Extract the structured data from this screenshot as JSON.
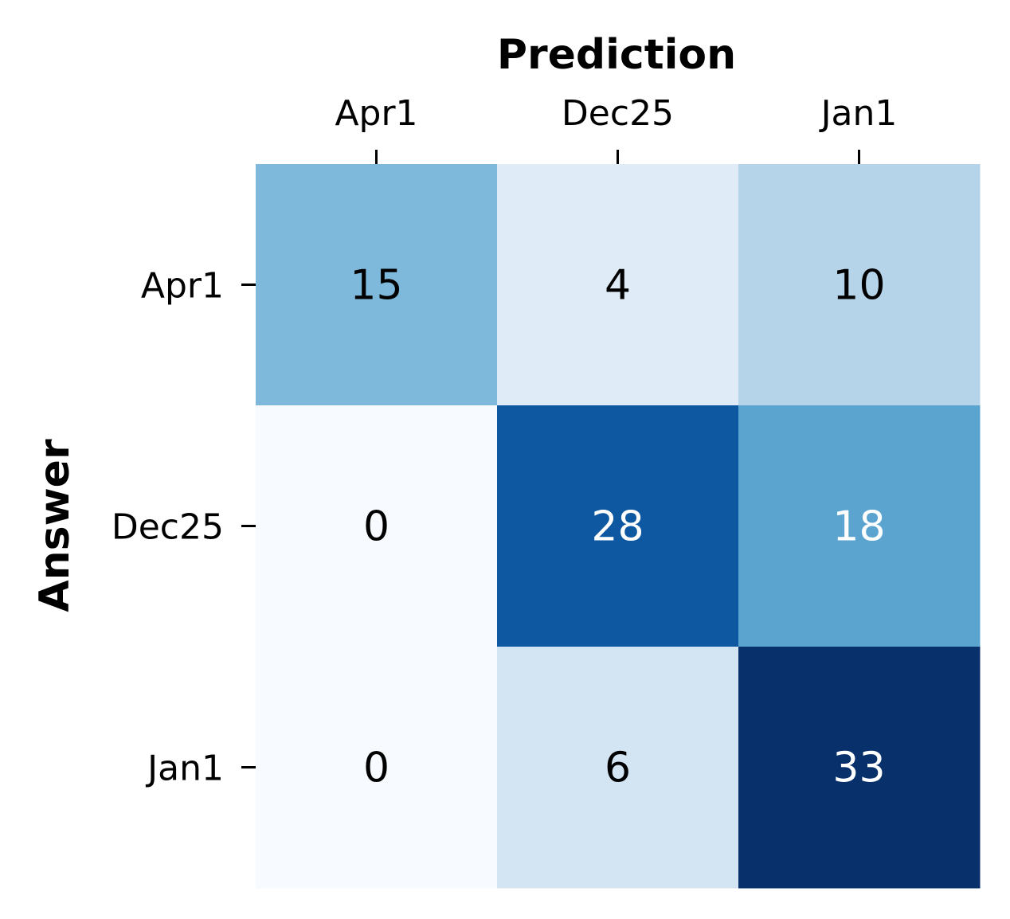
{
  "chart_data": {
    "type": "heatmap",
    "title": "",
    "xlabel": "Prediction",
    "ylabel": "Answer",
    "x_categories": [
      "Apr1",
      "Dec25",
      "Jan1"
    ],
    "y_categories": [
      "Apr1",
      "Dec25",
      "Jan1"
    ],
    "values": [
      [
        15,
        4,
        10
      ],
      [
        0,
        28,
        18
      ],
      [
        0,
        6,
        33
      ]
    ],
    "colormap": "Blues",
    "color_range": [
      0,
      33
    ],
    "x_axis_position": "top",
    "grid": false,
    "colorbar": false
  }
}
